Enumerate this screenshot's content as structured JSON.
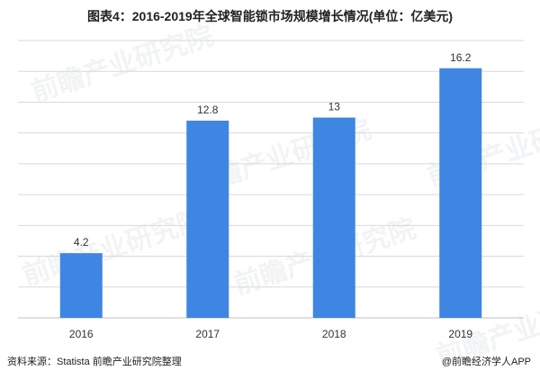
{
  "title": "图表4：2016-2019年全球智能锁市场规模增长情况(单位：亿美元)",
  "source": "资料来源：Statista 前瞻产业研究院整理",
  "credit": "@前瞻经济学人APP",
  "watermark": "前瞻产业研究院",
  "colors": {
    "bar": "#3f86e3",
    "grid": "#d9d9d9",
    "axis": "#bfbfbf"
  },
  "chart_data": {
    "type": "bar",
    "categories": [
      "2016",
      "2017",
      "2018",
      "2019"
    ],
    "values": [
      4.2,
      12.8,
      13,
      16.2
    ],
    "value_labels": [
      "4.2",
      "12.8",
      "13",
      "16.2"
    ],
    "title": "图表4：2016-2019年全球智能锁市场规模增长情况(单位：亿美元)",
    "xlabel": "",
    "ylabel": "",
    "ylim": [
      0,
      18
    ],
    "grid": true,
    "legend": "none"
  }
}
